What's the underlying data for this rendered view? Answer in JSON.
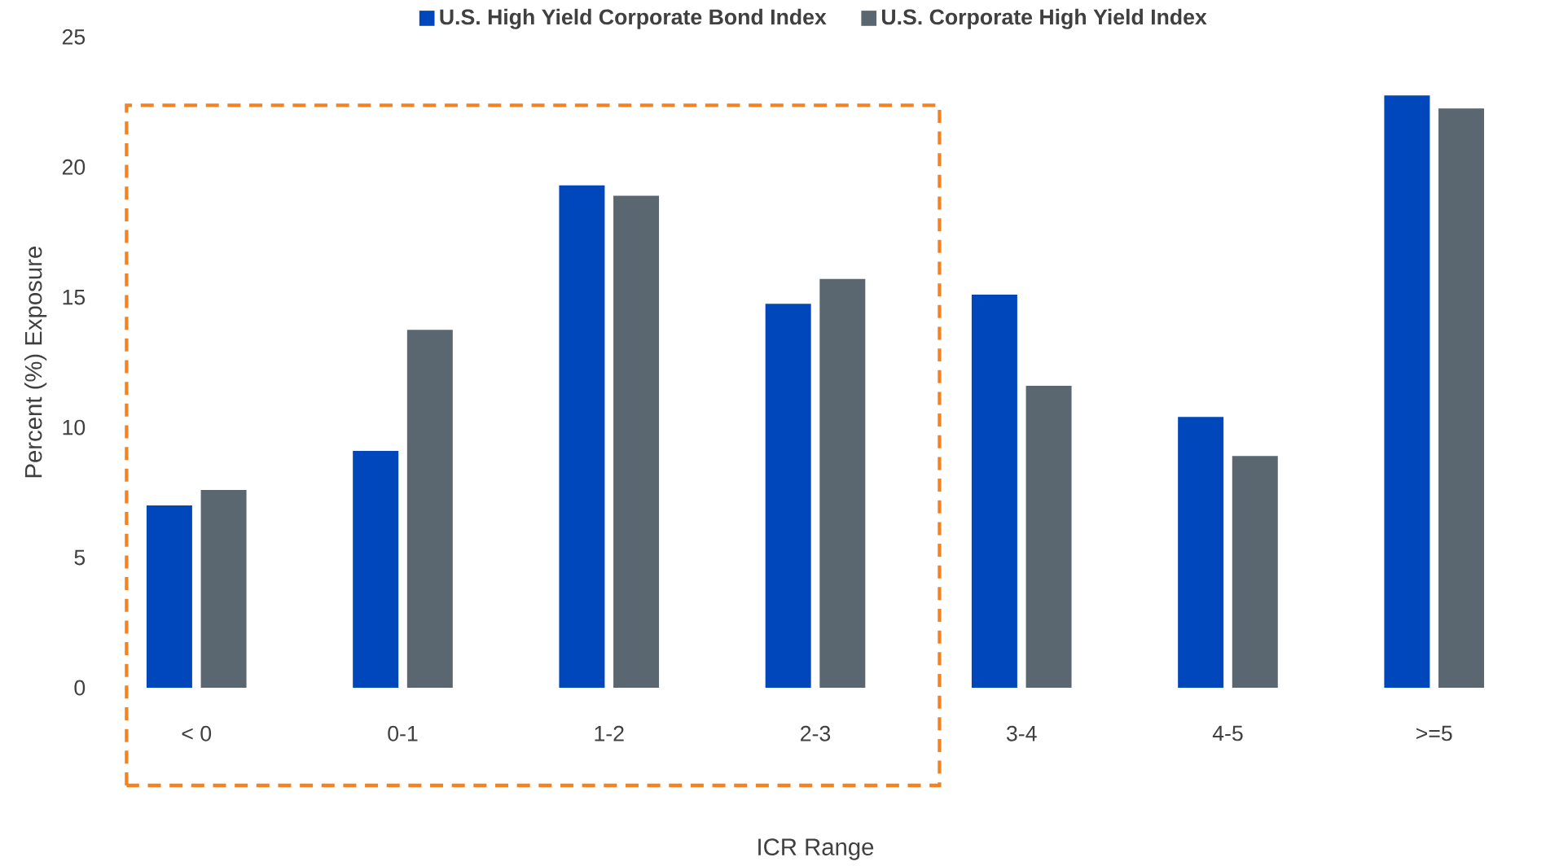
{
  "chart_data": {
    "type": "bar",
    "xlabel": "ICR Range",
    "ylabel": "Percent (%) Exposure",
    "categories": [
      "< 0",
      "0-1",
      "1-2",
      "2-3",
      "3-4",
      "4-5",
      ">=5"
    ],
    "series": [
      {
        "name": "U.S. High Yield Corporate Bond Index",
        "color": "#0047bb",
        "values": [
          7.0,
          9.1,
          19.3,
          14.75,
          15.1,
          10.4,
          22.75
        ]
      },
      {
        "name": "U.S. Corporate High Yield Index",
        "color": "#5a6670",
        "values": [
          7.6,
          13.75,
          18.9,
          15.7,
          11.6,
          8.9,
          22.25
        ]
      }
    ],
    "ylim": [
      0,
      25
    ],
    "yticks": [
      0,
      5,
      10,
      15,
      20,
      25
    ],
    "grid": false,
    "legend": "top"
  }
}
